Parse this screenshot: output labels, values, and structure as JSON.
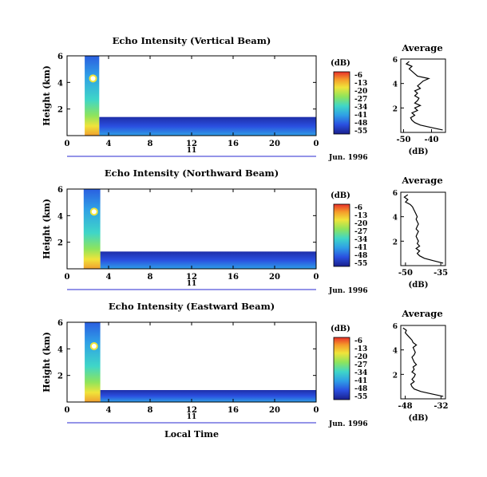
{
  "figure": {
    "bottom_xlabel": "Local Time"
  },
  "chart_data": [
    {
      "type": "heatmap",
      "title": "Echo Intensity (Vertical Beam)",
      "ylabel": "Height (km)",
      "xlabel": "Local Time",
      "x_ticks": [
        "0",
        "4",
        "8",
        "12",
        "16",
        "20",
        "0"
      ],
      "y_ticks": [
        "2",
        "4",
        "6"
      ],
      "xlim": [
        0,
        24
      ],
      "ylim": [
        0,
        6
      ],
      "date_label": "Jun. 1996",
      "day_label": "11",
      "colorbar_unit": "(dB)",
      "colorbar_ticks": [
        "-6",
        "-13",
        "-20",
        "-27",
        "-34",
        "-41",
        "-48",
        "-55"
      ],
      "features": {
        "column_x": [
          1.7,
          3.1
        ],
        "column_top_km": 6.0,
        "bright_spot": {
          "x": 2.5,
          "y": 4.3
        },
        "low_layer_top_km": 1.4
      },
      "profile": {
        "title": "Average",
        "xlabel": "(dB)",
        "x_ticks": [
          "-50",
          "-40"
        ],
        "xlim": [
          -51,
          -35
        ],
        "y_ticks": [
          "2",
          "4",
          "6"
        ],
        "heights": [
          0.2,
          0.4,
          0.6,
          0.8,
          1.0,
          1.2,
          1.4,
          1.6,
          1.8,
          2.0,
          2.2,
          2.4,
          2.6,
          2.8,
          3.0,
          3.2,
          3.4,
          3.6,
          3.8,
          4.0,
          4.2,
          4.4,
          4.6,
          4.8,
          5.0,
          5.2,
          5.4,
          5.6,
          5.8
        ],
        "values": [
          -36,
          -40,
          -44,
          -46,
          -47,
          -47.5,
          -46,
          -47,
          -45,
          -46,
          -44,
          -46,
          -45,
          -44.5,
          -46,
          -45,
          -46,
          -44,
          -45,
          -44,
          -43,
          -41,
          -45,
          -46,
          -47,
          -48,
          -47,
          -49,
          -48
        ]
      }
    },
    {
      "type": "heatmap",
      "title": "Echo Intensity (Northward Beam)",
      "ylabel": "Height (km)",
      "xlabel": "Local Time",
      "x_ticks": [
        "0",
        "4",
        "8",
        "12",
        "16",
        "20",
        "0"
      ],
      "y_ticks": [
        "2",
        "4",
        "6"
      ],
      "xlim": [
        0,
        24
      ],
      "ylim": [
        0,
        6
      ],
      "date_label": "Jun. 1996",
      "day_label": "11",
      "colorbar_unit": "(dB)",
      "colorbar_ticks": [
        "-6",
        "-13",
        "-20",
        "-27",
        "-34",
        "-41",
        "-48",
        "-55"
      ],
      "features": {
        "column_x": [
          1.6,
          3.2
        ],
        "column_top_km": 6.0,
        "bright_spot": {
          "x": 2.6,
          "y": 4.3
        },
        "low_layer_top_km": 1.3
      },
      "profile": {
        "title": "Average",
        "xlabel": "(dB)",
        "x_ticks": [
          "-50",
          "-35"
        ],
        "xlim": [
          -52,
          -33
        ],
        "y_ticks": [
          "2",
          "4",
          "6"
        ],
        "heights": [
          0.2,
          0.4,
          0.6,
          0.8,
          1.0,
          1.2,
          1.4,
          1.6,
          1.8,
          2.0,
          2.2,
          2.4,
          2.6,
          2.8,
          3.0,
          3.2,
          3.4,
          3.6,
          3.8,
          4.0,
          4.2,
          4.4,
          4.6,
          4.8,
          5.0,
          5.2,
          5.4,
          5.6,
          5.8
        ],
        "values": [
          -34,
          -38,
          -42,
          -44,
          -45,
          -44,
          -45.5,
          -44,
          -45,
          -44.5,
          -45,
          -45.5,
          -45,
          -44.5,
          -45.5,
          -45,
          -44.5,
          -45,
          -45.5,
          -45,
          -45.5,
          -46,
          -46.5,
          -47,
          -48,
          -50,
          -49,
          -50.5,
          -49
        ]
      }
    },
    {
      "type": "heatmap",
      "title": "Echo Intensity (Eastward Beam)",
      "ylabel": "Height (km)",
      "xlabel": "Local Time",
      "x_ticks": [
        "0",
        "4",
        "8",
        "12",
        "16",
        "20",
        "0"
      ],
      "y_ticks": [
        "2",
        "4",
        "6"
      ],
      "xlim": [
        0,
        24
      ],
      "ylim": [
        0,
        6
      ],
      "date_label": "Jun. 1996",
      "day_label": "11",
      "colorbar_unit": "(dB)",
      "colorbar_ticks": [
        "-6",
        "-13",
        "-20",
        "-27",
        "-34",
        "-41",
        "-48",
        "-55"
      ],
      "features": {
        "column_x": [
          1.7,
          3.2
        ],
        "column_top_km": 6.0,
        "bright_spot": {
          "x": 2.6,
          "y": 4.2
        },
        "low_layer_top_km": 0.9
      },
      "profile": {
        "title": "Average",
        "xlabel": "(dB)",
        "x_ticks": [
          "-48",
          "-32"
        ],
        "xlim": [
          -50,
          -30
        ],
        "y_ticks": [
          "2",
          "4",
          "6"
        ],
        "heights": [
          0.2,
          0.4,
          0.6,
          0.8,
          1.0,
          1.2,
          1.4,
          1.6,
          1.8,
          2.0,
          2.2,
          2.4,
          2.6,
          2.8,
          3.0,
          3.2,
          3.4,
          3.6,
          3.8,
          4.0,
          4.2,
          4.4,
          4.6,
          4.8,
          5.0,
          5.2,
          5.4,
          5.6,
          5.8
        ],
        "values": [
          -31,
          -36,
          -41,
          -44,
          -45,
          -45.5,
          -44,
          -45,
          -44,
          -43.5,
          -45,
          -44,
          -44.5,
          -43,
          -44,
          -44.5,
          -45,
          -44,
          -43.5,
          -44,
          -44.5,
          -43,
          -44.5,
          -45,
          -46,
          -47,
          -48,
          -47.5,
          -49
        ]
      }
    }
  ]
}
